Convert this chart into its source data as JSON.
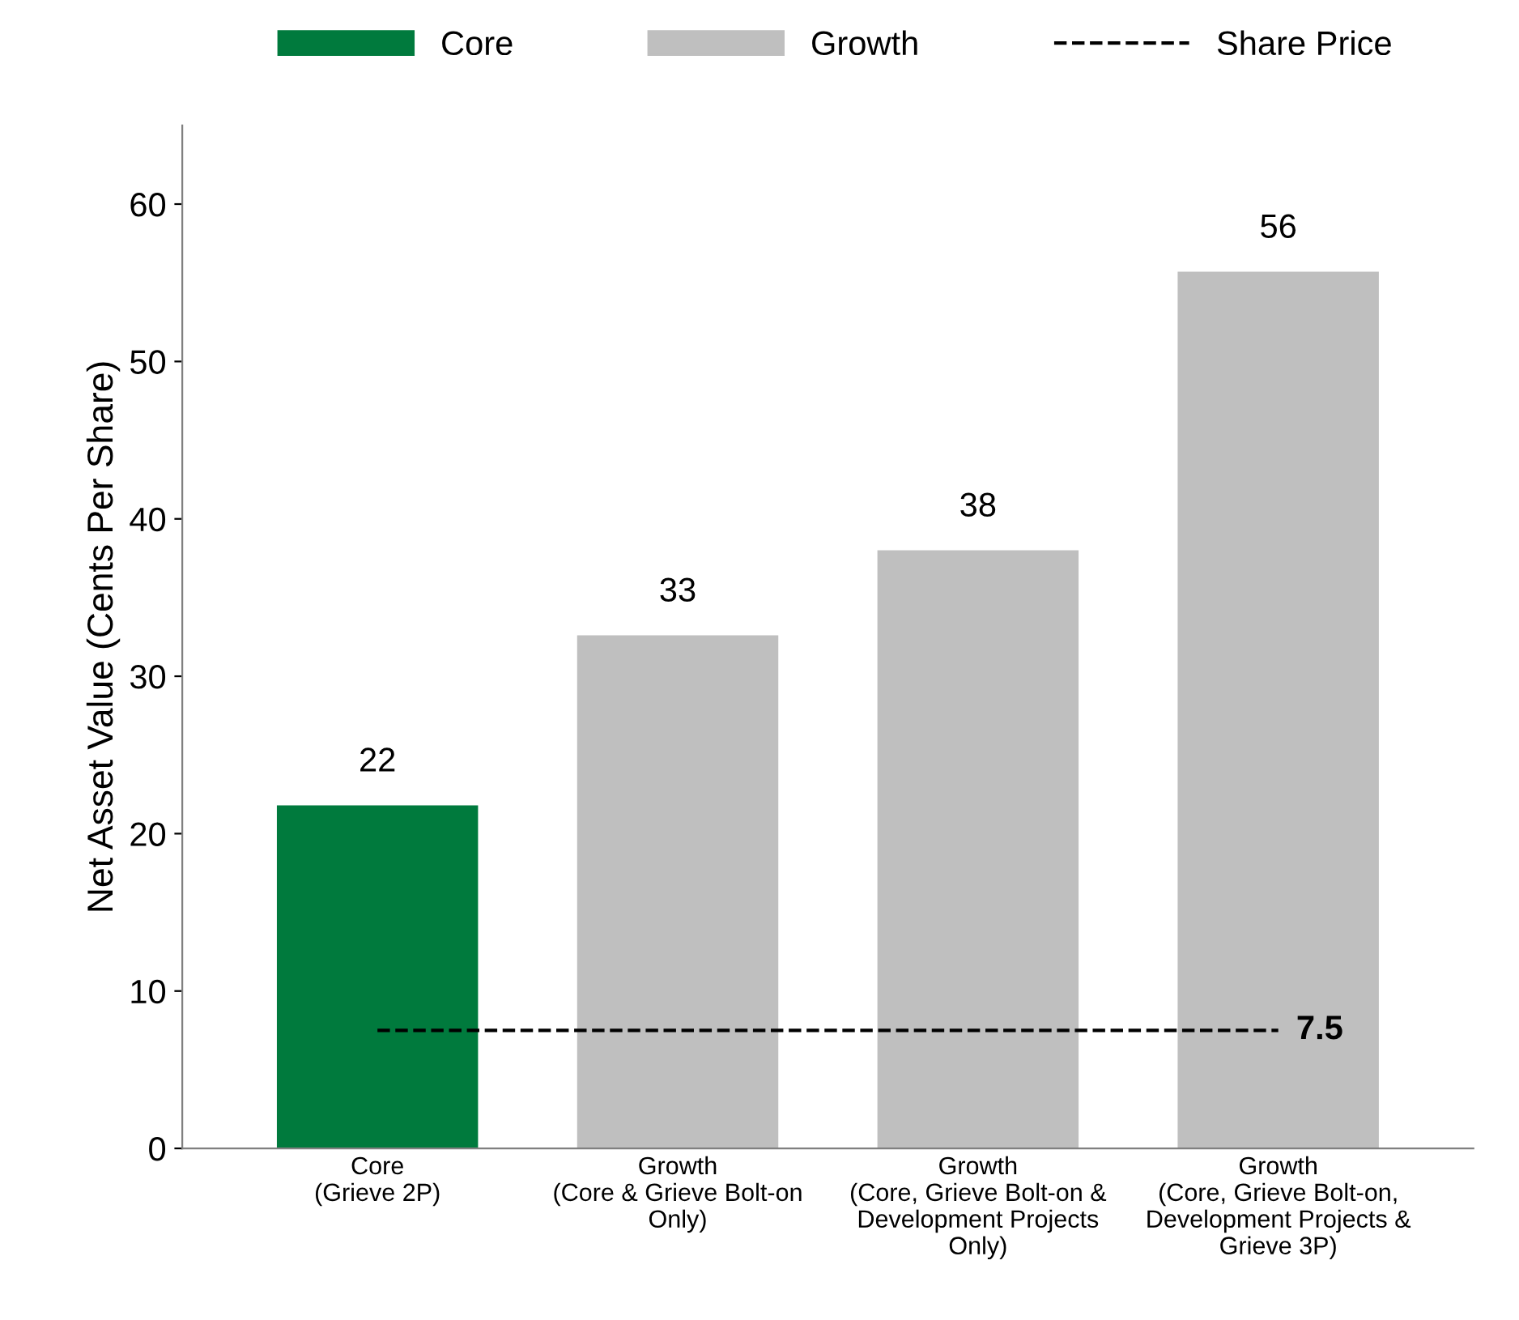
{
  "chart_data": {
    "type": "bar",
    "ylabel": "Net Asset Value (Cents Per Share)",
    "categories": [
      "Core\n(Grieve 2P)",
      "Growth\n(Core & Grieve Bolt-on\nOnly)",
      "Growth\n(Core, Grieve Bolt-on &\nDevelopment Projects\nOnly)",
      "Growth\n(Core, Grieve Bolt-on,\nDevelopment Projects &\nGrieve 3P)"
    ],
    "series": [
      {
        "name": "Core",
        "color": "#007a3d",
        "values": [
          21.8,
          null,
          null,
          null
        ],
        "value_labels": [
          "22",
          null,
          null,
          null
        ]
      },
      {
        "name": "Growth",
        "color": "#bfbfbf",
        "values": [
          null,
          32.6,
          38,
          55.7
        ],
        "value_labels": [
          null,
          "33",
          "38",
          "56"
        ]
      },
      {
        "name": "Share Price",
        "type": "line",
        "color": "#000000",
        "line_style": "dashed",
        "values": [
          7.5,
          7.5,
          7.5,
          7.5
        ],
        "value_labels": [
          null,
          null,
          null,
          "7.5"
        ]
      }
    ],
    "ylim": [
      0,
      65
    ],
    "yticks": [
      0,
      10,
      20,
      30,
      40,
      50,
      60
    ],
    "grid": false,
    "legend": "top"
  }
}
